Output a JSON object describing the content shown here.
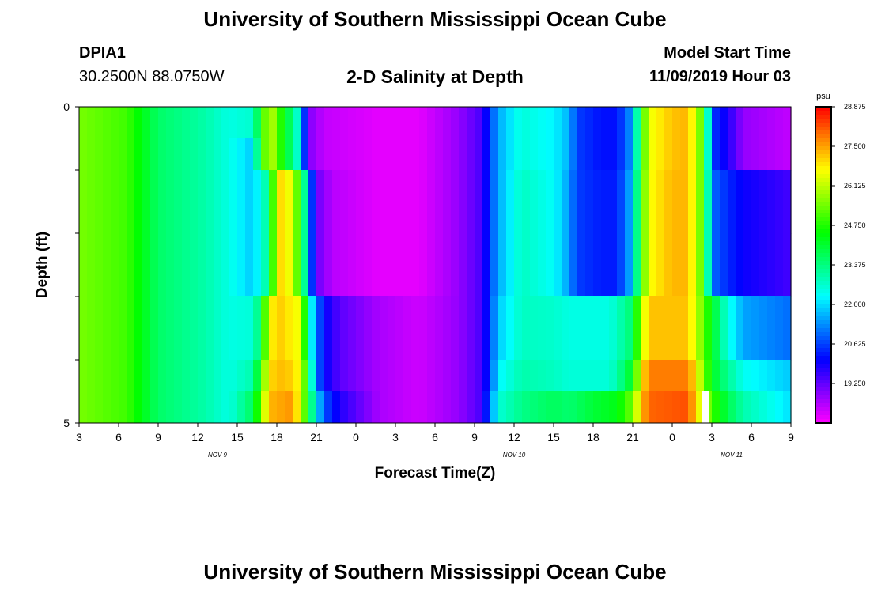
{
  "header": {
    "title": "University of Southern Mississippi Ocean Cube",
    "station": "DPIA1",
    "coords": "30.2500N 88.0750W",
    "model_start_label": "Model Start Time",
    "model_start_value": "11/09/2019 Hour 03"
  },
  "footer": {
    "title": "University of Southern Mississippi Ocean Cube"
  },
  "chart_data": {
    "type": "heatmap",
    "title": "2-D Salinity at Depth",
    "xlabel": "Forecast Time(Z)",
    "ylabel": "Depth (ft)",
    "ylim": [
      0,
      5
    ],
    "y_tick_labels": [
      "0",
      "5"
    ],
    "x_ticks": [
      "3",
      "6",
      "9",
      "12",
      "15",
      "18",
      "21",
      "0",
      "3",
      "6",
      "9",
      "12",
      "15",
      "18",
      "21",
      "0",
      "3",
      "6",
      "9"
    ],
    "date_labels": [
      {
        "label": "NOV  9",
        "x_index": 3.5
      },
      {
        "label": "NOV  10",
        "x_index": 11
      },
      {
        "label": "NOV  11",
        "x_index": 16.5
      }
    ],
    "colorbar": {
      "unit": "psu",
      "min": 17.875,
      "max": 28.875,
      "tick_values": [
        "28.875",
        "27.500",
        "26.125",
        "24.750",
        "23.375",
        "22.000",
        "20.625",
        "19.250"
      ]
    },
    "time_step_hours": 1,
    "rows": [
      {
        "depth_range": "0-0.5",
        "key": [
          [
            0,
            25.5
          ],
          [
            6,
            25
          ],
          [
            10,
            23.6
          ],
          [
            16,
            23
          ],
          [
            19,
            22.5
          ],
          [
            22,
            22.7
          ],
          [
            23,
            24.5
          ],
          [
            24,
            26.2
          ],
          [
            25,
            25.5
          ],
          [
            26,
            24
          ],
          [
            27,
            23.5
          ],
          [
            28,
            22
          ],
          [
            29,
            19
          ],
          [
            31,
            18.4
          ],
          [
            38,
            18.1
          ],
          [
            43,
            18.1
          ],
          [
            48,
            18.8
          ],
          [
            51,
            19.5
          ],
          [
            52,
            20.6
          ],
          [
            53,
            21.5
          ],
          [
            56,
            22.6
          ],
          [
            60,
            22.2
          ],
          [
            62,
            21.6
          ],
          [
            63,
            20.6
          ],
          [
            66,
            20.2
          ],
          [
            68,
            20.2
          ],
          [
            70,
            21.5
          ],
          [
            71,
            24.5
          ],
          [
            72,
            26.5
          ],
          [
            75,
            27.2
          ],
          [
            77,
            27.3
          ],
          [
            78,
            26.2
          ],
          [
            79,
            24.8
          ],
          [
            80,
            20.6
          ],
          [
            82,
            19.8
          ],
          [
            84,
            18.8
          ],
          [
            90,
            18.4
          ]
        ]
      },
      {
        "depth_range": "0.5-1",
        "key": [
          [
            0,
            25.5
          ],
          [
            6,
            25
          ],
          [
            10,
            23.6
          ],
          [
            16,
            23
          ],
          [
            19,
            22.5
          ],
          [
            22,
            21.8
          ],
          [
            23,
            24.5
          ],
          [
            24,
            26.2
          ],
          [
            25,
            25.5
          ],
          [
            26,
            24
          ],
          [
            27,
            23.5
          ],
          [
            28,
            22
          ],
          [
            29,
            19
          ],
          [
            31,
            18.4
          ],
          [
            38,
            18.1
          ],
          [
            43,
            18.1
          ],
          [
            48,
            18.8
          ],
          [
            51,
            19.5
          ],
          [
            52,
            20.6
          ],
          [
            53,
            21.5
          ],
          [
            56,
            22.6
          ],
          [
            60,
            22.2
          ],
          [
            62,
            21.6
          ],
          [
            63,
            20.6
          ],
          [
            66,
            20.2
          ],
          [
            68,
            20.2
          ],
          [
            70,
            21.5
          ],
          [
            71,
            24.5
          ],
          [
            72,
            26.5
          ],
          [
            75,
            27.2
          ],
          [
            77,
            27.3
          ],
          [
            78,
            26.2
          ],
          [
            79,
            24.8
          ],
          [
            80,
            20.6
          ],
          [
            82,
            19.8
          ],
          [
            84,
            18.8
          ],
          [
            90,
            18.4
          ]
        ]
      },
      {
        "depth_range": "1-2",
        "key": [
          [
            0,
            25.5
          ],
          [
            6,
            25
          ],
          [
            10,
            23.6
          ],
          [
            16,
            23
          ],
          [
            19,
            22.5
          ],
          [
            22,
            21.8
          ],
          [
            24,
            23.3
          ],
          [
            25,
            26.8
          ],
          [
            26,
            27.1
          ],
          [
            27,
            26
          ],
          [
            28,
            24.6
          ],
          [
            29,
            21.8
          ],
          [
            30,
            19.2
          ],
          [
            32,
            18.5
          ],
          [
            38,
            18.1
          ],
          [
            43,
            18.1
          ],
          [
            48,
            18.8
          ],
          [
            51,
            19.5
          ],
          [
            52,
            20.6
          ],
          [
            53,
            21.5
          ],
          [
            56,
            22.8
          ],
          [
            60,
            22.3
          ],
          [
            62,
            21.4
          ],
          [
            63,
            20.6
          ],
          [
            66,
            20.3
          ],
          [
            68,
            20.3
          ],
          [
            70,
            21.8
          ],
          [
            71,
            24.8
          ],
          [
            72,
            26.6
          ],
          [
            75,
            27.3
          ],
          [
            77,
            27.3
          ],
          [
            78,
            26.2
          ],
          [
            79,
            24.8
          ],
          [
            80,
            21
          ],
          [
            82,
            20.4
          ],
          [
            84,
            20
          ],
          [
            90,
            19.5
          ]
        ]
      },
      {
        "depth_range": "2-3",
        "key": [
          [
            0,
            25.5
          ],
          [
            6,
            25
          ],
          [
            10,
            23.6
          ],
          [
            16,
            23
          ],
          [
            19,
            22.5
          ],
          [
            22,
            21.8
          ],
          [
            24,
            23.3
          ],
          [
            25,
            26.8
          ],
          [
            26,
            27.1
          ],
          [
            27,
            26
          ],
          [
            28,
            24.6
          ],
          [
            29,
            21.8
          ],
          [
            30,
            19.2
          ],
          [
            32,
            18.5
          ],
          [
            38,
            18.1
          ],
          [
            43,
            18.1
          ],
          [
            48,
            18.8
          ],
          [
            51,
            19.5
          ],
          [
            52,
            20.6
          ],
          [
            53,
            21.5
          ],
          [
            56,
            22.8
          ],
          [
            60,
            22.3
          ],
          [
            62,
            21.4
          ],
          [
            63,
            20.6
          ],
          [
            66,
            20.3
          ],
          [
            68,
            20.3
          ],
          [
            70,
            21.8
          ],
          [
            71,
            24.8
          ],
          [
            72,
            26.6
          ],
          [
            75,
            27.3
          ],
          [
            77,
            27.3
          ],
          [
            78,
            26.2
          ],
          [
            79,
            24.8
          ],
          [
            80,
            21
          ],
          [
            82,
            20.4
          ],
          [
            84,
            20
          ],
          [
            90,
            19.5
          ]
        ]
      },
      {
        "depth_range": "3-4",
        "key": [
          [
            0,
            25.5
          ],
          [
            6,
            25
          ],
          [
            10,
            23.6
          ],
          [
            16,
            23
          ],
          [
            19,
            22.5
          ],
          [
            22,
            22.6
          ],
          [
            23,
            23.8
          ],
          [
            24,
            26.5
          ],
          [
            25,
            27.2
          ],
          [
            28,
            26.5
          ],
          [
            29,
            23
          ],
          [
            30,
            21.2
          ],
          [
            31,
            20.1
          ],
          [
            33,
            19.3
          ],
          [
            38,
            18.6
          ],
          [
            43,
            18.3
          ],
          [
            48,
            18.8
          ],
          [
            51,
            19.5
          ],
          [
            52,
            20.6
          ],
          [
            53,
            21.8
          ],
          [
            56,
            22.8
          ],
          [
            60,
            22.7
          ],
          [
            62,
            22.5
          ],
          [
            67,
            22.5
          ],
          [
            68,
            22.8
          ],
          [
            70,
            23.6
          ],
          [
            71,
            26
          ],
          [
            72,
            27.2
          ],
          [
            77,
            27.2
          ],
          [
            78,
            26.2
          ],
          [
            80,
            24.2
          ],
          [
            82,
            22.5
          ],
          [
            84,
            21.5
          ],
          [
            90,
            21
          ]
        ]
      },
      {
        "depth_range": "4-4.5",
        "key": [
          [
            0,
            25.5
          ],
          [
            6,
            25
          ],
          [
            10,
            23.6
          ],
          [
            16,
            23
          ],
          [
            19,
            22.5
          ],
          [
            22,
            23
          ],
          [
            23,
            24.8
          ],
          [
            24,
            27
          ],
          [
            26,
            27.3
          ],
          [
            28,
            26.6
          ],
          [
            29,
            24
          ],
          [
            30,
            21.2
          ],
          [
            31,
            20.1
          ],
          [
            33,
            19.3
          ],
          [
            38,
            18.6
          ],
          [
            43,
            18.3
          ],
          [
            48,
            18.8
          ],
          [
            51,
            19.5
          ],
          [
            52,
            20.6
          ],
          [
            53,
            22.2
          ],
          [
            56,
            23
          ],
          [
            60,
            22.8
          ],
          [
            62,
            22.6
          ],
          [
            67,
            22.6
          ],
          [
            68,
            23
          ],
          [
            70,
            24.3
          ],
          [
            71,
            26.7
          ],
          [
            72,
            27.8
          ],
          [
            77,
            27.8
          ],
          [
            78,
            26.8
          ],
          [
            80,
            24.2
          ],
          [
            82,
            23.2
          ],
          [
            84,
            22.4
          ],
          [
            90,
            21.8
          ]
        ]
      },
      {
        "depth_range": "4.5-5",
        "key": [
          [
            0,
            25.5
          ],
          [
            6,
            25
          ],
          [
            10,
            23.6
          ],
          [
            16,
            23
          ],
          [
            19,
            22.5
          ],
          [
            22,
            23.7
          ],
          [
            23,
            25.5
          ],
          [
            24,
            27.3
          ],
          [
            27,
            27.6
          ],
          [
            28,
            26.2
          ],
          [
            29,
            24.3
          ],
          [
            30,
            22.2
          ],
          [
            31,
            20.8
          ],
          [
            33,
            19.8
          ],
          [
            38,
            18.6
          ],
          [
            43,
            18.3
          ],
          [
            48,
            18.8
          ],
          [
            51,
            19.5
          ],
          [
            52,
            21
          ],
          [
            53,
            22.6
          ],
          [
            56,
            23.3
          ],
          [
            60,
            23.7
          ],
          [
            62,
            23.5
          ],
          [
            65,
            24
          ],
          [
            68,
            24.3
          ],
          [
            70,
            25.5
          ],
          [
            71,
            27.2
          ],
          [
            72,
            28
          ],
          [
            77,
            28.2
          ],
          [
            78,
            27
          ],
          [
            80,
            25
          ],
          [
            82,
            23.8
          ],
          [
            84,
            23
          ],
          [
            90,
            22
          ]
        ]
      }
    ],
    "annotations": [
      "missing data gap near Nov 11 03Z at bottom depth"
    ]
  }
}
